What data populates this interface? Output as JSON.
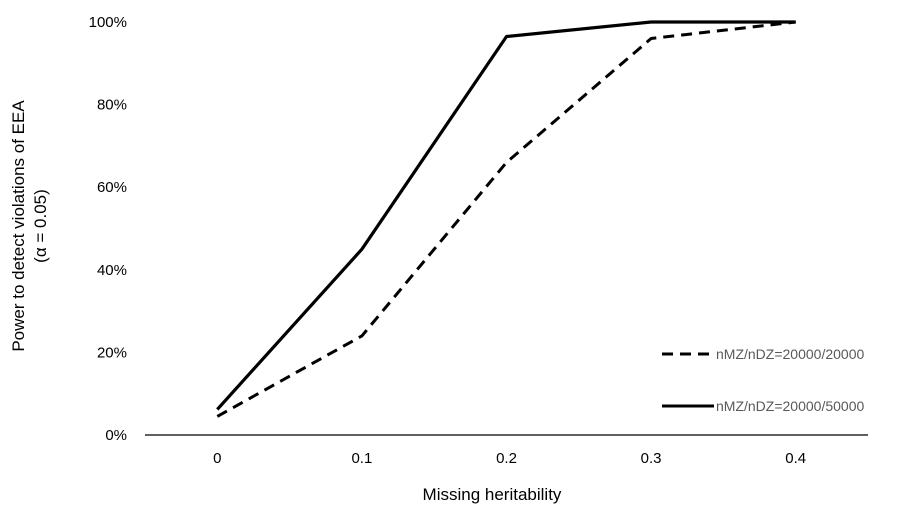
{
  "chart_data": {
    "type": "line",
    "x": [
      0,
      0.1,
      0.2,
      0.3,
      0.4
    ],
    "x_tick_labels": [
      "0",
      "0.1",
      "0.2",
      "0.3",
      "0.4"
    ],
    "y_tick_labels": [
      "0%",
      "20%",
      "40%",
      "60%",
      "80%",
      "100%"
    ],
    "y_ticks": [
      0,
      20,
      40,
      60,
      80,
      100
    ],
    "ylim": [
      0,
      100
    ],
    "xlabel": "Missing heritability",
    "ylabel_line1": "Power to detect violations of EEA",
    "ylabel_line2": "(α = 0.05)",
    "grid": false,
    "legend_position": "bottom-right",
    "series": [
      {
        "name": "nMZ/nDZ=20000/20000",
        "style": "dashed",
        "color": "#000000",
        "values": [
          4.5,
          24,
          66,
          96,
          100
        ]
      },
      {
        "name": "nMZ/nDZ=20000/50000",
        "style": "solid",
        "color": "#000000",
        "values": [
          6.2,
          45,
          96.5,
          100,
          100
        ]
      }
    ]
  }
}
